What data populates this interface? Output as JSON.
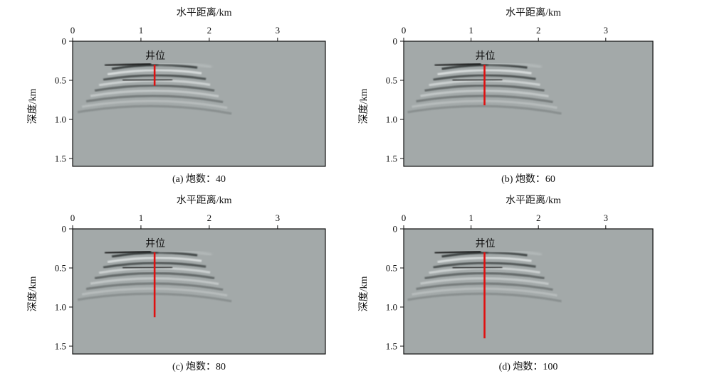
{
  "chart_data": [
    {
      "type": "heatmap",
      "title": "水平距离/km",
      "xlabel": "水平距离/km",
      "ylabel": "深度/km",
      "xlim": [
        0,
        3.7
      ],
      "ylim": [
        1.6,
        0
      ],
      "xticks": [
        0,
        1,
        2,
        3
      ],
      "xtick_labels": [
        "0",
        "1",
        "2",
        "3"
      ],
      "yticks": [
        0,
        0.5,
        1.0,
        1.5
      ],
      "ytick_labels": [
        "0",
        "0.5",
        "1.0",
        "1.5"
      ],
      "caption": "(a) 炮数：40",
      "annotation": "井位",
      "well": {
        "x": 1.2,
        "top": 0.3,
        "bottom": 0.57
      }
    },
    {
      "type": "heatmap",
      "title": "水平距离/km",
      "xlabel": "水平距离/km",
      "ylabel": "深度/km",
      "xlim": [
        0,
        3.7
      ],
      "ylim": [
        1.6,
        0
      ],
      "xticks": [
        0,
        1,
        2,
        3
      ],
      "xtick_labels": [
        "0",
        "1",
        "2",
        "3"
      ],
      "yticks": [
        0,
        0.5,
        1.0,
        1.5
      ],
      "ytick_labels": [
        "0",
        "0.5",
        "1.0",
        "1.5"
      ],
      "caption": "(b) 炮数：60",
      "annotation": "井位",
      "well": {
        "x": 1.2,
        "top": 0.3,
        "bottom": 0.82
      }
    },
    {
      "type": "heatmap",
      "title": "水平距离/km",
      "xlabel": "水平距离/km",
      "ylabel": "深度/km",
      "xlim": [
        0,
        3.7
      ],
      "ylim": [
        1.6,
        0
      ],
      "xticks": [
        0,
        1,
        2,
        3
      ],
      "xtick_labels": [
        "0",
        "1",
        "2",
        "3"
      ],
      "yticks": [
        0,
        0.5,
        1.0,
        1.5
      ],
      "ytick_labels": [
        "0",
        "0.5",
        "1.0",
        "1.5"
      ],
      "caption": "(c) 炮数：80",
      "annotation": "井位",
      "well": {
        "x": 1.2,
        "top": 0.3,
        "bottom": 1.13
      }
    },
    {
      "type": "heatmap",
      "title": "水平距离/km",
      "xlabel": "水平距离/km",
      "ylabel": "深度/km",
      "xlim": [
        0,
        3.7
      ],
      "ylim": [
        1.6,
        0
      ],
      "xticks": [
        0,
        1,
        2,
        3
      ],
      "xtick_labels": [
        "0",
        "1",
        "2",
        "3"
      ],
      "yticks": [
        0,
        0.5,
        1.0,
        1.5
      ],
      "ytick_labels": [
        "0",
        "0.5",
        "1.0",
        "1.5"
      ],
      "caption": "(d) 炮数：100",
      "annotation": "井位",
      "well": {
        "x": 1.2,
        "top": 0.3,
        "bottom": 1.4
      }
    }
  ],
  "colors": {
    "background_field": "#a3a9a9",
    "well_line": "#e01010",
    "axis": "#111111"
  }
}
